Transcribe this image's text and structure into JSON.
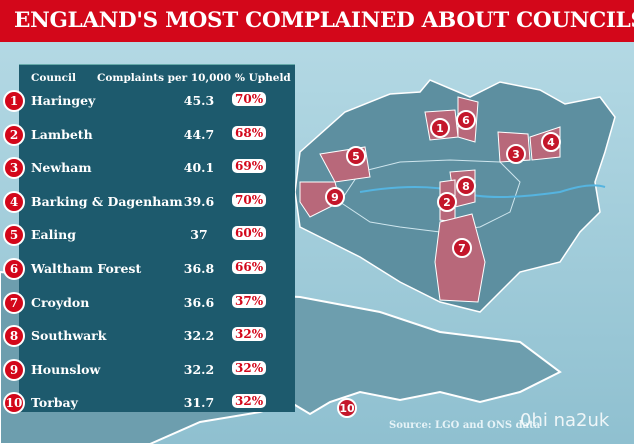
{
  "title": "ENGLAND'S MOST COMPLAINED ABOUT COUNCILS",
  "table": {
    "headers": [
      "Council",
      "Complaints per 10,000",
      "% Upheld"
    ],
    "rows": [
      {
        "rank": "1",
        "council": "Haringey",
        "complaints": "45.3",
        "upheld": "70%"
      },
      {
        "rank": "2",
        "council": "Lambeth",
        "complaints": "44.7",
        "upheld": "68%"
      },
      {
        "rank": "3",
        "council": "Newham",
        "complaints": "40.1",
        "upheld": "69%"
      },
      {
        "rank": "4",
        "council": "Barking & Dagenham",
        "complaints": "39.6",
        "upheld": "70%"
      },
      {
        "rank": "5",
        "council": "Ealing",
        "complaints": "37",
        "upheld": "60%"
      },
      {
        "rank": "6",
        "council": "Waltham Forest",
        "complaints": "36.8",
        "upheld": "66%"
      },
      {
        "rank": "7",
        "council": "Croydon",
        "complaints": "36.6",
        "upheld": "37%"
      },
      {
        "rank": "8",
        "council": "Southwark",
        "complaints": "32.2",
        "upheld": "32%"
      },
      {
        "rank": "9",
        "council": "Hounslow",
        "complaints": "32.2",
        "upheld": "32%"
      },
      {
        "rank": "10",
        "council": "Torbay",
        "complaints": "31.7",
        "upheld": "32%"
      }
    ]
  },
  "map_markers": [
    "1",
    "6",
    "5",
    "3",
    "4",
    "8",
    "9",
    "2",
    "7",
    "10"
  ],
  "source": "Source: LGO and ONS data",
  "watermark": "0hi na2uk",
  "colors": {
    "accent": "#d3071a",
    "panel": "#1d5a6d",
    "highlight": "#b8687a"
  },
  "chart_data": {
    "type": "table",
    "title": "ENGLAND'S MOST COMPLAINED ABOUT COUNCILS",
    "columns": [
      "Council",
      "Complaints per 10,000",
      "% Upheld"
    ],
    "categories": [
      "Haringey",
      "Lambeth",
      "Newham",
      "Barking & Dagenham",
      "Ealing",
      "Waltham Forest",
      "Croydon",
      "Southwark",
      "Hounslow",
      "Torbay"
    ],
    "series": [
      {
        "name": "Complaints per 10,000",
        "values": [
          45.3,
          44.7,
          40.1,
          39.6,
          37,
          36.8,
          36.6,
          32.2,
          32.2,
          31.7
        ]
      },
      {
        "name": "% Upheld",
        "values": [
          70,
          68,
          69,
          70,
          60,
          66,
          37,
          32,
          32,
          32
        ]
      }
    ]
  }
}
